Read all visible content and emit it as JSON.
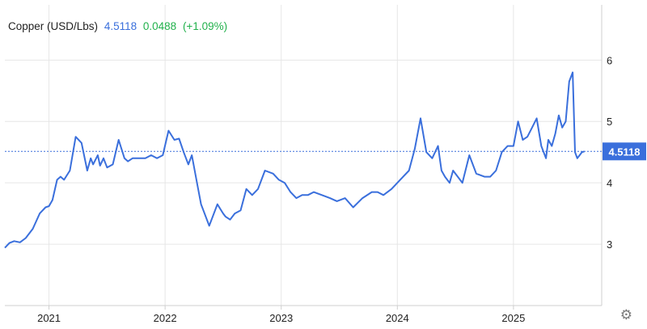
{
  "header": {
    "instrument": "Copper (USD/Lbs)",
    "last": "4.5118",
    "change": "0.0488",
    "change_pct": "(+1.09%)"
  },
  "colors": {
    "line": "#3a6fdc",
    "positive": "#22b14c",
    "grid": "#e6e6e6",
    "price_tag_bg": "#3a6fdc",
    "price_tag_text": "#ffffff",
    "axis_text": "#222222"
  },
  "icons": {
    "settings": "gear-icon"
  },
  "chart_data": {
    "type": "line",
    "title": "",
    "xlabel": "",
    "ylabel": "",
    "ylim": [
      2.0,
      6.9
    ],
    "y_ticks": [
      3,
      4,
      5,
      6
    ],
    "x_ticks": [
      "2021",
      "2022",
      "2023",
      "2024",
      "2025"
    ],
    "x_range": [
      2020.62,
      2025.76
    ],
    "last_price_label": "4.5118",
    "last_price_value": 4.5118,
    "grid": true,
    "series": [
      {
        "name": "",
        "x": [
          2020.62,
          2020.66,
          2020.7,
          2020.75,
          2020.8,
          2020.86,
          2020.92,
          2020.97,
          2021.0,
          2021.03,
          2021.07,
          2021.1,
          2021.13,
          2021.18,
          2021.23,
          2021.28,
          2021.33,
          2021.36,
          2021.38,
          2021.42,
          2021.44,
          2021.47,
          2021.5,
          2021.55,
          2021.6,
          2021.65,
          2021.68,
          2021.72,
          2021.77,
          2021.83,
          2021.88,
          2021.93,
          2021.98,
          2022.03,
          2022.08,
          2022.12,
          2022.16,
          2022.18,
          2022.2,
          2022.23,
          2022.28,
          2022.31,
          2022.33,
          2022.38,
          2022.45,
          2022.5,
          2022.52,
          2022.56,
          2022.6,
          2022.65,
          2022.7,
          2022.75,
          2022.8,
          2022.86,
          2022.93,
          2022.98,
          2023.03,
          2023.08,
          2023.13,
          2023.18,
          2023.23,
          2023.28,
          2023.35,
          2023.42,
          2023.48,
          2023.55,
          2023.62,
          2023.7,
          2023.78,
          2023.83,
          2023.88,
          2023.95,
          2024.0,
          2024.05,
          2024.1,
          2024.15,
          2024.2,
          2024.25,
          2024.3,
          2024.35,
          2024.38,
          2024.41,
          2024.45,
          2024.48,
          2024.52,
          2024.56,
          2024.62,
          2024.68,
          2024.75,
          2024.8,
          2024.85,
          2024.9,
          2024.95,
          2025.0,
          2025.04,
          2025.08,
          2025.12,
          2025.16,
          2025.2,
          2025.24,
          2025.28,
          2025.3,
          2025.33,
          2025.36,
          2025.39,
          2025.42,
          2025.45,
          2025.48,
          2025.51,
          2025.53,
          2025.55,
          2025.57,
          2025.59,
          2025.61
        ],
        "values": [
          2.94,
          3.02,
          3.05,
          3.03,
          3.1,
          3.25,
          3.5,
          3.6,
          3.62,
          3.72,
          4.05,
          4.1,
          4.05,
          4.2,
          4.75,
          4.65,
          4.2,
          4.4,
          4.3,
          4.45,
          4.28,
          4.4,
          4.25,
          4.3,
          4.7,
          4.4,
          4.35,
          4.4,
          4.4,
          4.4,
          4.45,
          4.4,
          4.45,
          4.85,
          4.7,
          4.72,
          4.5,
          4.4,
          4.3,
          4.45,
          3.95,
          3.65,
          3.55,
          3.3,
          3.65,
          3.5,
          3.45,
          3.4,
          3.5,
          3.55,
          3.9,
          3.8,
          3.9,
          4.2,
          4.15,
          4.05,
          4.0,
          3.85,
          3.75,
          3.8,
          3.8,
          3.85,
          3.8,
          3.75,
          3.7,
          3.75,
          3.6,
          3.75,
          3.85,
          3.85,
          3.8,
          3.9,
          4.0,
          4.1,
          4.2,
          4.55,
          5.05,
          4.5,
          4.4,
          4.6,
          4.2,
          4.1,
          4.0,
          4.2,
          4.1,
          4.0,
          4.45,
          4.15,
          4.1,
          4.1,
          4.2,
          4.5,
          4.6,
          4.6,
          5.0,
          4.7,
          4.75,
          4.9,
          5.05,
          4.6,
          4.4,
          4.7,
          4.6,
          4.8,
          5.1,
          4.9,
          5.0,
          5.65,
          5.8,
          4.5,
          4.4,
          4.45,
          4.5,
          4.51
        ]
      }
    ]
  }
}
